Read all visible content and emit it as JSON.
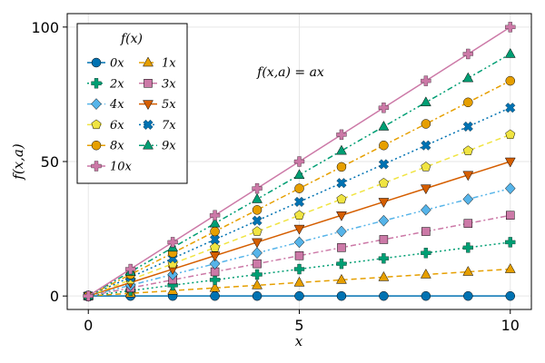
{
  "chart_data": {
    "type": "line",
    "title": "",
    "xlabel": "x",
    "ylabel": "f(x,a)",
    "xlim": [
      -0.5,
      10.5
    ],
    "ylim": [
      -5,
      105
    ],
    "xticks": [
      0,
      5,
      10
    ],
    "yticks": [
      0,
      50,
      100
    ],
    "grid": true,
    "annotation": "f(x,a) = ax",
    "legend": {
      "title": "f(x)",
      "placement": "top-left",
      "columns": 2
    },
    "x": [
      0,
      1,
      2,
      3,
      4,
      5,
      6,
      7,
      8,
      9,
      10
    ],
    "series": [
      {
        "name": "0x",
        "a": 0,
        "color": "#0072B2",
        "marker": "circle",
        "dash": "solid",
        "values": [
          0,
          0,
          0,
          0,
          0,
          0,
          0,
          0,
          0,
          0,
          0
        ]
      },
      {
        "name": "1x",
        "a": 1,
        "color": "#E69F00",
        "marker": "triangle-up",
        "dash": "dash",
        "values": [
          0,
          1,
          2,
          3,
          4,
          5,
          6,
          7,
          8,
          9,
          10
        ]
      },
      {
        "name": "2x",
        "a": 2,
        "color": "#009E73",
        "marker": "cross",
        "dash": "dot",
        "values": [
          0,
          2,
          4,
          6,
          8,
          10,
          12,
          14,
          16,
          18,
          20
        ]
      },
      {
        "name": "3x",
        "a": 3,
        "color": "#CC79A7",
        "marker": "square",
        "dash": "dashdot",
        "values": [
          0,
          3,
          6,
          9,
          12,
          15,
          18,
          21,
          24,
          27,
          30
        ]
      },
      {
        "name": "4x",
        "a": 4,
        "color": "#56B4E9",
        "marker": "diamond",
        "dash": "dashdotdot",
        "values": [
          0,
          4,
          8,
          12,
          16,
          20,
          24,
          28,
          32,
          36,
          40
        ]
      },
      {
        "name": "5x",
        "a": 5,
        "color": "#D55E00",
        "marker": "triangle-down",
        "dash": "solid",
        "values": [
          0,
          5,
          10,
          15,
          20,
          25,
          30,
          35,
          40,
          45,
          50
        ]
      },
      {
        "name": "6x",
        "a": 6,
        "color": "#F0E442",
        "marker": "pentagon",
        "dash": "dash",
        "values": [
          0,
          6,
          12,
          18,
          24,
          30,
          36,
          42,
          48,
          54,
          60
        ]
      },
      {
        "name": "7x",
        "a": 7,
        "color": "#0072B2",
        "marker": "xcross",
        "dash": "dot",
        "values": [
          0,
          7,
          14,
          21,
          28,
          35,
          42,
          49,
          56,
          63,
          70
        ]
      },
      {
        "name": "8x",
        "a": 8,
        "color": "#E69F00",
        "marker": "circle",
        "dash": "dashdot",
        "values": [
          0,
          8,
          16,
          24,
          32,
          40,
          48,
          56,
          64,
          72,
          80
        ]
      },
      {
        "name": "9x",
        "a": 9,
        "color": "#009E73",
        "marker": "triangle-up",
        "dash": "dashdotdot",
        "values": [
          0,
          9,
          18,
          27,
          36,
          45,
          54,
          63,
          72,
          81,
          90
        ]
      },
      {
        "name": "10x",
        "a": 10,
        "color": "#CC79A7",
        "marker": "cross",
        "dash": "solid",
        "values": [
          0,
          10,
          20,
          30,
          40,
          50,
          60,
          70,
          80,
          90,
          100
        ]
      }
    ]
  }
}
